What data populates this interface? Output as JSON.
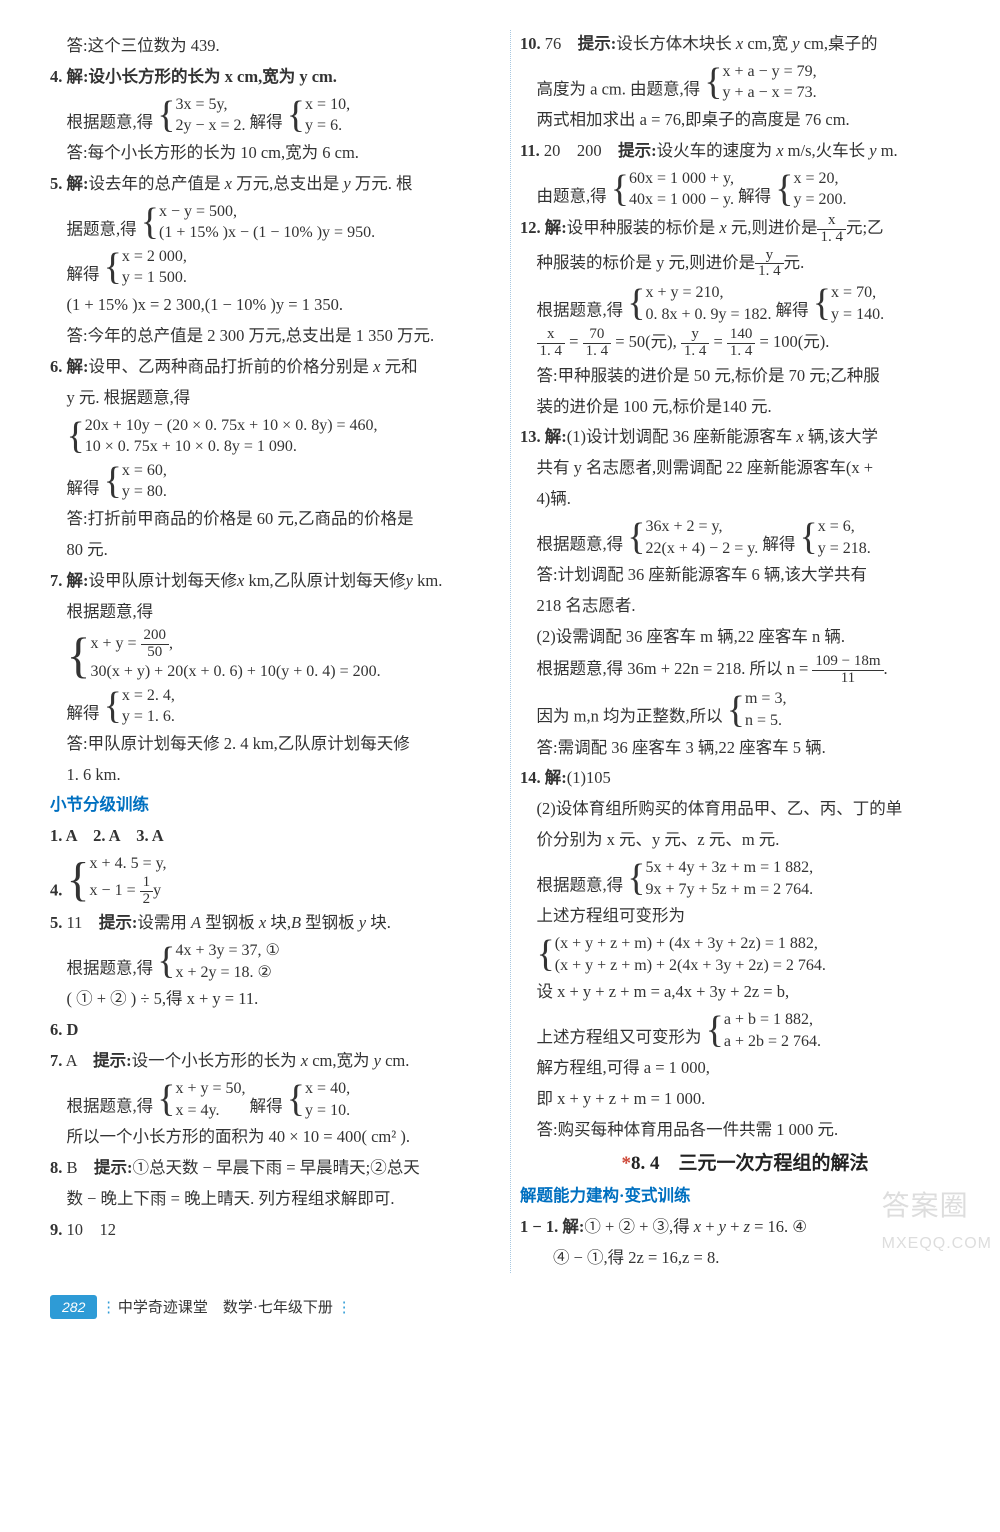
{
  "footer": {
    "page_number": "282",
    "text": "中学奇迹课堂　数学·七年级下册"
  },
  "watermark": {
    "main": "答案圈",
    "sub": "MXEQQ.COM"
  },
  "left": {
    "p0": "答:这个三位数为 439.",
    "p4_1": "4. 解:设小长方形的长为 x cm,宽为 y cm.",
    "p4_2a": "根据题意,得",
    "p4_2_sys1_t": "3x = 5y,",
    "p4_2_sys1_b": "2y − x = 2.",
    "p4_2c": "解得",
    "p4_2_sys2_t": "x = 10,",
    "p4_2_sys2_b": "y = 6.",
    "p4_3": "答:每个小长方形的长为 10 cm,宽为 6 cm.",
    "p5_1": "5. 解:设去年的总产值是 x 万元,总支出是 y 万元. 根",
    "p5_2a": "据题意,得",
    "p5_2_sys_t": "x − y = 500,",
    "p5_2_sys_b": "(1 + 15% )x − (1 − 10% )y = 950.",
    "p5_3a": "解得",
    "p5_3_sys_t": "x = 2 000,",
    "p5_3_sys_b": "y = 1 500.",
    "p5_4": "(1 + 15% )x = 2 300,(1 − 10% )y = 1 350.",
    "p5_5": "答:今年的总产值是 2 300 万元,总支出是 1 350 万元.",
    "p6_1": "6. 解:设甲、乙两种商品打折前的价格分别是 x 元和",
    "p6_2": "y 元. 根据题意,得",
    "p6_sys_t": "20x + 10y − (20 × 0. 75x + 10 × 0. 8y) = 460,",
    "p6_sys_b": "10 × 0. 75x + 10 × 0. 8y = 1 090.",
    "p6_3a": "解得",
    "p6_3_sys_t": "x = 60,",
    "p6_3_sys_b": "y = 80.",
    "p6_4": "答:打折前甲商品的价格是 60 元,乙商品的价格是",
    "p6_5": "80 元.",
    "p7_1": "7. 解:设甲队原计划每天修x km,乙队原计划每天修y km.",
    "p7_2": "根据题意,得",
    "p7_sys_t_a": "x + y = ",
    "p7_sys_t_num": "200",
    "p7_sys_t_den": "50",
    "p7_sys_b": "30(x + y) + 20(x + 0. 6) + 10(y + 0. 4) = 200.",
    "p7_3a": "解得",
    "p7_3_sys_t": "x = 2. 4,",
    "p7_3_sys_b": "y = 1. 6.",
    "p7_4": "答:甲队原计划每天修 2. 4 km,乙队原计划每天修",
    "p7_5": "1. 6 km.",
    "sec_blue1": "小节分级训练",
    "q1": "1. A　2. A　3. A",
    "q4a": "4. ",
    "q4_sys_t": "x + 4. 5 = y,",
    "q4_sys_b_a": "x − 1 = ",
    "q4_sys_b_num": "1",
    "q4_sys_b_den": "2",
    "q4_sys_b_c": "y",
    "q5_1": "5. 11　提示:设需用 A 型钢板 x 块,B 型钢板 y 块.",
    "q5_2a": "根据题意,得",
    "q5_sys_t": "4x + 3y = 37, ①",
    "q5_sys_b": "x + 2y = 18. ②",
    "q5_3": "( ① + ② ) ÷ 5,得 x + y = 11.",
    "q6": "6. D",
    "q7_1": "7. A　提示:设一个小长方形的长为 x cm,宽为 y cm.",
    "q7_2a": "根据题意,得",
    "q7_sys_t": "x + y = 50,",
    "q7_sys_b": "x = 4y.",
    "q7_2c": "解得",
    "q7_sys2_t": "x = 40,",
    "q7_sys2_b": "y = 10.",
    "q7_3": "所以一个小长方形的面积为 40 × 10 = 400( cm² ).",
    "q8_1": "8. B　提示:①总天数 − 早晨下雨 = 早晨晴天;②总天",
    "q8_2": "数 − 晚上下雨 = 晚上晴天. 列方程组求解即可.",
    "q9": "9. 10　12",
    "q10": "10. 76　提示:设长方体木块长 x cm,宽 y cm,桌子的"
  },
  "right": {
    "r10_1a": "高度为 a cm. 由题意,得",
    "r10_sys_t": "x + a − y = 79,",
    "r10_sys_b": "y + a − x = 73.",
    "r10_2": "两式相加求出 a = 76,即桌子的高度是 76 cm.",
    "r11_1": "11. 20　200　提示:设火车的速度为 x m/s,火车长 y m.",
    "r11_2a": "由题意,得",
    "r11_sys_t": "60x = 1 000 + y,",
    "r11_sys_b": "40x = 1 000 − y.",
    "r11_2c": "解得",
    "r11_sys2_t": "x = 20,",
    "r11_sys2_b": "y = 200.",
    "r12_1a": "12. 解:设甲种服装的标价是 x 元,则进价是",
    "r12_1_num": "x",
    "r12_1_den": "1. 4",
    "r12_1c": "元;乙",
    "r12_2a": "种服装的标价是 y 元,则进价是",
    "r12_2_num": "y",
    "r12_2_den": "1. 4",
    "r12_2c": "元.",
    "r12_3a": "根据题意,得",
    "r12_sys_t": "x + y = 210,",
    "r12_sys_b": "0. 8x + 0. 9y = 182.",
    "r12_3c": "解得",
    "r12_sys2_t": "x = 70,",
    "r12_sys2_b": "y = 140.",
    "r12_4_f1n": "x",
    "r12_4_f1d": "1. 4",
    "r12_4_eq1": " = ",
    "r12_4_f2n": "70",
    "r12_4_f2d": "1. 4",
    "r12_4_mid": " = 50(元),",
    "r12_4_f3n": "y",
    "r12_4_f3d": "1. 4",
    "r12_4_eq2": " = ",
    "r12_4_f4n": "140",
    "r12_4_f4d": "1. 4",
    "r12_4_end": " = 100(元).",
    "r12_5": "答:甲种服装的进价是 50 元,标价是 70 元;乙种服",
    "r12_6": "装的进价是 100 元,标价是140 元.",
    "r13_1": "13. 解:(1)设计划调配 36 座新能源客车 x 辆,该大学",
    "r13_2": "共有 y 名志愿者,则需调配 22 座新能源客车(x +",
    "r13_3": "4)辆.",
    "r13_4a": "根据题意,得",
    "r13_sys_t": "36x + 2 = y,",
    "r13_sys_b": "22(x + 4) − 2 = y.",
    "r13_4c": "解得",
    "r13_sys2_t": "x = 6,",
    "r13_sys2_b": "y = 218.",
    "r13_5": "答:计划调配 36 座新能源客车 6 辆,该大学共有",
    "r13_6": "218 名志愿者.",
    "r13_7": "(2)设需调配 36 座客车 m 辆,22 座客车 n 辆.",
    "r13_8a": "根据题意,得 36m + 22n = 218. 所以 n = ",
    "r13_8_num": "109 − 18m",
    "r13_8_den": "11",
    "r13_8c": ".",
    "r13_9a": "因为 m,n 均为正整数,所以",
    "r13_9_sys_t": "m = 3,",
    "r13_9_sys_b": "n = 5.",
    "r13_10": "答:需调配 36 座客车 3 辆,22 座客车 5 辆.",
    "r14_1": "14. 解:(1)105",
    "r14_2": "(2)设体育组所购买的体育用品甲、乙、丙、丁的单",
    "r14_3": "价分别为 x 元、y 元、z 元、m 元.",
    "r14_4a": "根据题意,得",
    "r14_sys_t": "5x + 4y + 3z + m = 1 882,",
    "r14_sys_b": "9x + 7y + 5z + m = 2 764.",
    "r14_5": "上述方程组可变形为",
    "r14_sys2_t": "(x + y + z + m) + (4x + 3y + 2z) = 1 882,",
    "r14_sys2_b": "(x + y + z + m) + 2(4x + 3y + 2z) = 2 764.",
    "r14_6": "设 x + y + z + m = a,4x + 3y + 2z = b,",
    "r14_7a": "上述方程组又可变形为",
    "r14_sys3_t": "a + b = 1 882,",
    "r14_sys3_b": "a + 2b = 2 764.",
    "r14_8": "解方程组,可得 a = 1 000,",
    "r14_9": "即 x + y + z + m = 1 000.",
    "r14_10": "答:购买每种体育用品各一件共需 1 000 元.",
    "sec_center": "8. 4　三元一次方程组的解法",
    "sec_blue2": "解题能力建构·变式训练",
    "v1_1": "1 − 1. 解:① + ② + ③,得 x + y + z = 16. ④",
    "v1_2": "④ − ①,得 2z = 16,z = 8."
  }
}
